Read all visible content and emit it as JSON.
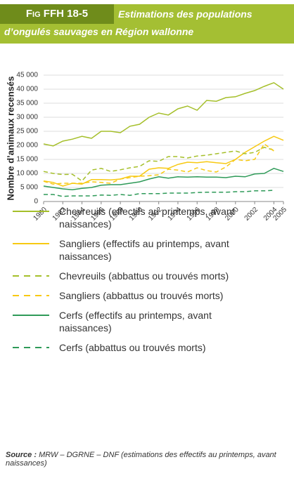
{
  "chart_data": {
    "type": "line",
    "figure_label": "Fig FFH 18-5",
    "title": "Estimations des populations d’ongulés sauvages en Région wallonne",
    "ylabel": "Nombre d’animaux recensés",
    "x": [
      1980,
      1981,
      1982,
      1983,
      1984,
      1985,
      1986,
      1987,
      1988,
      1989,
      1990,
      1991,
      1992,
      1993,
      1994,
      1995,
      1996,
      1997,
      1998,
      1999,
      2000,
      2001,
      2002,
      2003,
      2004,
      2005
    ],
    "xlim": [
      1980,
      2005
    ],
    "xticks": [
      1980,
      1982,
      1984,
      1986,
      1988,
      1990,
      1992,
      1994,
      1996,
      1998,
      2000,
      2002,
      2004,
      2005
    ],
    "ylim": [
      0,
      45000
    ],
    "yticks": [
      0,
      {
        "value": 5000,
        "label": "5 000"
      },
      {
        "value": 10000,
        "label": "10 000"
      },
      {
        "value": 15000,
        "label": "15 000"
      },
      {
        "value": 20000,
        "label": "20 000"
      },
      {
        "value": 25000,
        "label": "25 000"
      },
      {
        "value": 30000,
        "label": "30 000"
      },
      {
        "value": 35000,
        "label": "35 000"
      },
      {
        "value": 40000,
        "label": "40 000"
      },
      {
        "value": 45000,
        "label": "45 000"
      }
    ],
    "grid": true,
    "series": [
      {
        "name": "Chevreuils (effectifs au printemps, avant naissances)",
        "color": "#a5bf2a",
        "dash": false,
        "values": [
          20500,
          19800,
          21500,
          22200,
          23200,
          22500,
          25000,
          25000,
          24500,
          26800,
          27500,
          30000,
          31500,
          30800,
          33000,
          34000,
          32500,
          36000,
          35700,
          37000,
          37300,
          38500,
          39500,
          41000,
          42300,
          40000
        ]
      },
      {
        "name": "Sangliers (effectifs au printemps, avant naissances)",
        "color": "#f7c912",
        "dash": false,
        "values": [
          7300,
          6800,
          5500,
          6500,
          6200,
          7800,
          7800,
          7700,
          8000,
          9000,
          9000,
          11500,
          12000,
          11800,
          13200,
          14000,
          13800,
          14200,
          13800,
          13500,
          15000,
          17500,
          19500,
          21500,
          23200,
          21800
        ]
      },
      {
        "name": "Chevreuils (abbattus ou trouvés morts)",
        "color": "#a5bf2a",
        "dash": true,
        "values": [
          10700,
          10000,
          9600,
          9700,
          7300,
          11200,
          11800,
          10700,
          11300,
          12000,
          12500,
          14500,
          14300,
          16000,
          16000,
          15500,
          16200,
          16500,
          17000,
          17500,
          18000,
          17000,
          17500,
          19300,
          18300,
          null
        ]
      },
      {
        "name": "Sangliers (abbattus ou trouvés morts)",
        "color": "#f7c912",
        "dash": true,
        "values": [
          7200,
          6200,
          6500,
          6500,
          6500,
          7000,
          6800,
          6500,
          8000,
          8500,
          9000,
          9200,
          9500,
          11500,
          11200,
          10500,
          12000,
          11000,
          10500,
          12300,
          15000,
          14500,
          15000,
          20500,
          18000,
          null
        ]
      },
      {
        "name": "Cerfs (effectifs au printemps, avant naissances)",
        "color": "#2e9a58",
        "dash": false,
        "values": [
          5500,
          5000,
          4500,
          4200,
          4700,
          5000,
          5800,
          6000,
          6000,
          6500,
          7000,
          8000,
          8800,
          8300,
          8800,
          8700,
          8800,
          8700,
          8700,
          8500,
          9000,
          8800,
          9800,
          10000,
          11800,
          10700
        ]
      },
      {
        "name": "Cerfs (abbattus ou trouvés morts)",
        "color": "#2e9a58",
        "dash": true,
        "values": [
          2500,
          2500,
          1800,
          2000,
          2000,
          2000,
          2300,
          2200,
          2500,
          2200,
          2800,
          2800,
          2800,
          3000,
          3000,
          3000,
          3200,
          3300,
          3300,
          3300,
          3500,
          3500,
          3800,
          3800,
          4000,
          null
        ]
      }
    ],
    "source_label": "Source :",
    "source": "MRW – DGRNE – DNF (estimations des effectifs au printemps, avant naissances)"
  }
}
